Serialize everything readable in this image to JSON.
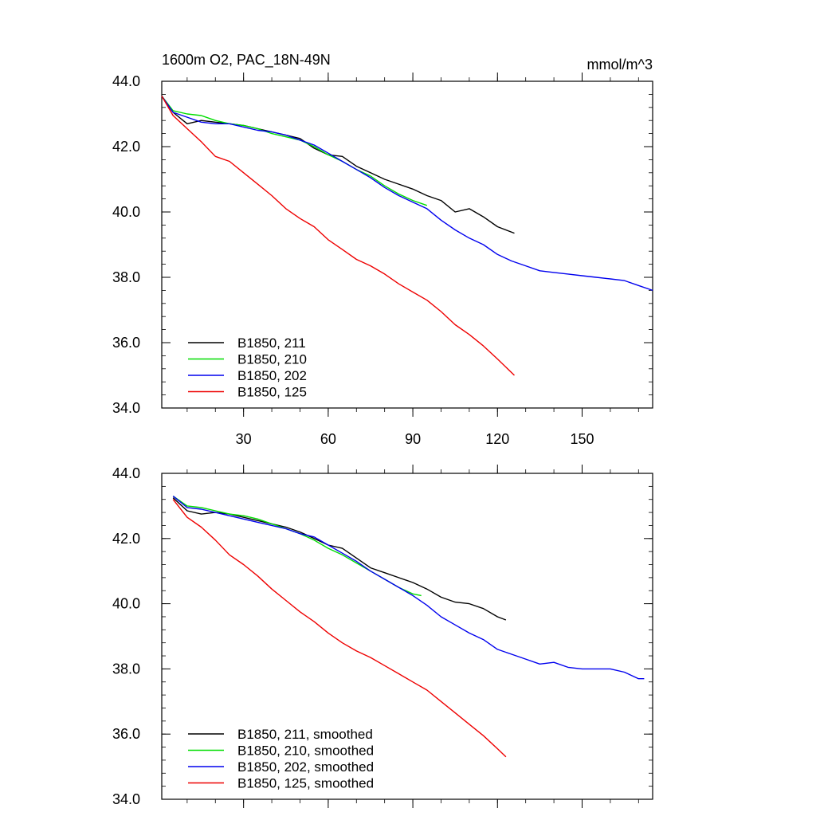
{
  "figure": {
    "title_left": "1600m O2, PAC_18N-49N",
    "title_right": "mmol/m^3"
  },
  "colors": {
    "black": "#000000",
    "green": "#00dd00",
    "blue": "#0000ee",
    "red": "#ee0000"
  },
  "chart_data": [
    {
      "type": "line",
      "xlim": [
        1,
        175
      ],
      "ylim": [
        34,
        44
      ],
      "xticks": [
        30,
        60,
        90,
        120,
        150
      ],
      "yticks": [
        34,
        36,
        38,
        40,
        42,
        44
      ],
      "ytick_labels": [
        "34.0",
        "36.0",
        "38.0",
        "40.0",
        "42.0",
        "44.0"
      ],
      "xtick_labels": [
        "30",
        "60",
        "90",
        "120",
        "150"
      ],
      "legend_position": "lower-left",
      "series": [
        {
          "name": "B1850, 211",
          "color": "black",
          "x": [
            1,
            5,
            10,
            15,
            20,
            25,
            30,
            35,
            40,
            45,
            50,
            55,
            60,
            65,
            70,
            75,
            80,
            85,
            90,
            95,
            100,
            105,
            110,
            115,
            120,
            126
          ],
          "y": [
            43.55,
            43.05,
            42.7,
            42.8,
            42.75,
            42.7,
            42.65,
            42.55,
            42.45,
            42.35,
            42.25,
            41.95,
            41.75,
            41.7,
            41.4,
            41.2,
            41.0,
            40.85,
            40.7,
            40.5,
            40.35,
            40.0,
            40.1,
            39.85,
            39.55,
            39.35
          ]
        },
        {
          "name": "B1850, 210",
          "color": "green",
          "x": [
            1,
            5,
            10,
            15,
            20,
            25,
            30,
            35,
            40,
            45,
            50,
            55,
            60,
            65,
            70,
            75,
            80,
            85,
            90,
            95
          ],
          "y": [
            43.55,
            43.1,
            43.0,
            42.95,
            42.8,
            42.7,
            42.65,
            42.55,
            42.4,
            42.3,
            42.2,
            42.0,
            41.75,
            41.55,
            41.3,
            41.1,
            40.8,
            40.55,
            40.35,
            40.2
          ]
        },
        {
          "name": "B1850, 202",
          "color": "blue",
          "x": [
            1,
            5,
            10,
            15,
            20,
            25,
            30,
            35,
            40,
            45,
            50,
            55,
            60,
            65,
            70,
            75,
            80,
            85,
            90,
            95,
            100,
            105,
            110,
            115,
            120,
            125,
            130,
            135,
            140,
            145,
            150,
            155,
            160,
            165,
            170,
            175
          ],
          "y": [
            43.55,
            43.05,
            42.9,
            42.75,
            42.7,
            42.7,
            42.6,
            42.5,
            42.45,
            42.35,
            42.2,
            42.05,
            41.8,
            41.55,
            41.3,
            41.05,
            40.75,
            40.5,
            40.3,
            40.1,
            39.75,
            39.45,
            39.2,
            39.0,
            38.7,
            38.5,
            38.35,
            38.2,
            38.15,
            38.1,
            38.05,
            38.0,
            37.95,
            37.9,
            37.75,
            37.6
          ]
        },
        {
          "name": "B1850, 125",
          "color": "red",
          "x": [
            1,
            5,
            10,
            15,
            20,
            25,
            30,
            35,
            40,
            45,
            50,
            55,
            60,
            65,
            70,
            75,
            80,
            85,
            90,
            95,
            100,
            105,
            110,
            115,
            120,
            126
          ],
          "y": [
            43.55,
            42.95,
            42.55,
            42.15,
            41.7,
            41.55,
            41.2,
            40.85,
            40.5,
            40.1,
            39.8,
            39.55,
            39.15,
            38.85,
            38.55,
            38.35,
            38.1,
            37.8,
            37.55,
            37.3,
            36.95,
            36.55,
            36.25,
            35.9,
            35.5,
            35.0
          ]
        }
      ]
    },
    {
      "type": "line",
      "xlim": [
        1,
        175
      ],
      "ylim": [
        34,
        44
      ],
      "xticks": [
        30,
        60,
        90,
        120,
        150
      ],
      "yticks": [
        34,
        36,
        38,
        40,
        42,
        44
      ],
      "ytick_labels": [
        "34.0",
        "36.0",
        "38.0",
        "40.0",
        "42.0",
        "44.0"
      ],
      "legend_position": "lower-left",
      "series": [
        {
          "name": "B1850, 211, smoothed",
          "color": "black",
          "x": [
            5,
            10,
            15,
            20,
            25,
            30,
            35,
            40,
            45,
            50,
            55,
            60,
            65,
            70,
            75,
            80,
            85,
            90,
            95,
            100,
            105,
            110,
            115,
            120,
            123
          ],
          "y": [
            43.25,
            42.85,
            42.75,
            42.8,
            42.75,
            42.65,
            42.55,
            42.45,
            42.35,
            42.2,
            42.0,
            41.8,
            41.7,
            41.4,
            41.1,
            40.95,
            40.8,
            40.65,
            40.45,
            40.2,
            40.05,
            40.0,
            39.85,
            39.6,
            39.5
          ]
        },
        {
          "name": "B1850, 210, smoothed",
          "color": "green",
          "x": [
            5,
            10,
            15,
            20,
            25,
            30,
            35,
            40,
            45,
            50,
            55,
            60,
            65,
            70,
            75,
            80,
            85,
            90,
            93
          ],
          "y": [
            43.3,
            43.0,
            42.95,
            42.85,
            42.75,
            42.7,
            42.6,
            42.45,
            42.3,
            42.15,
            41.95,
            41.7,
            41.5,
            41.25,
            41.0,
            40.75,
            40.5,
            40.3,
            40.25
          ]
        },
        {
          "name": "B1850, 202, smoothed",
          "color": "blue",
          "x": [
            5,
            10,
            15,
            20,
            25,
            30,
            35,
            40,
            45,
            50,
            55,
            60,
            65,
            70,
            75,
            80,
            85,
            90,
            95,
            100,
            105,
            110,
            115,
            120,
            125,
            130,
            135,
            140,
            145,
            150,
            155,
            160,
            165,
            170,
            172
          ],
          "y": [
            43.3,
            42.95,
            42.9,
            42.8,
            42.7,
            42.6,
            42.5,
            42.4,
            42.3,
            42.15,
            42.05,
            41.8,
            41.55,
            41.3,
            41.0,
            40.75,
            40.5,
            40.25,
            39.95,
            39.6,
            39.35,
            39.1,
            38.9,
            38.6,
            38.45,
            38.3,
            38.15,
            38.2,
            38.05,
            38.0,
            38.0,
            38.0,
            37.9,
            37.7,
            37.7
          ]
        },
        {
          "name": "B1850, 125, smoothed",
          "color": "red",
          "x": [
            5,
            10,
            15,
            20,
            25,
            30,
            35,
            40,
            45,
            50,
            55,
            60,
            65,
            70,
            75,
            80,
            85,
            90,
            95,
            100,
            105,
            110,
            115,
            120,
            123
          ],
          "y": [
            43.2,
            42.65,
            42.35,
            41.95,
            41.5,
            41.2,
            40.85,
            40.45,
            40.1,
            39.75,
            39.45,
            39.1,
            38.8,
            38.55,
            38.35,
            38.1,
            37.85,
            37.6,
            37.35,
            37.0,
            36.65,
            36.3,
            35.95,
            35.55,
            35.3
          ]
        }
      ]
    }
  ]
}
